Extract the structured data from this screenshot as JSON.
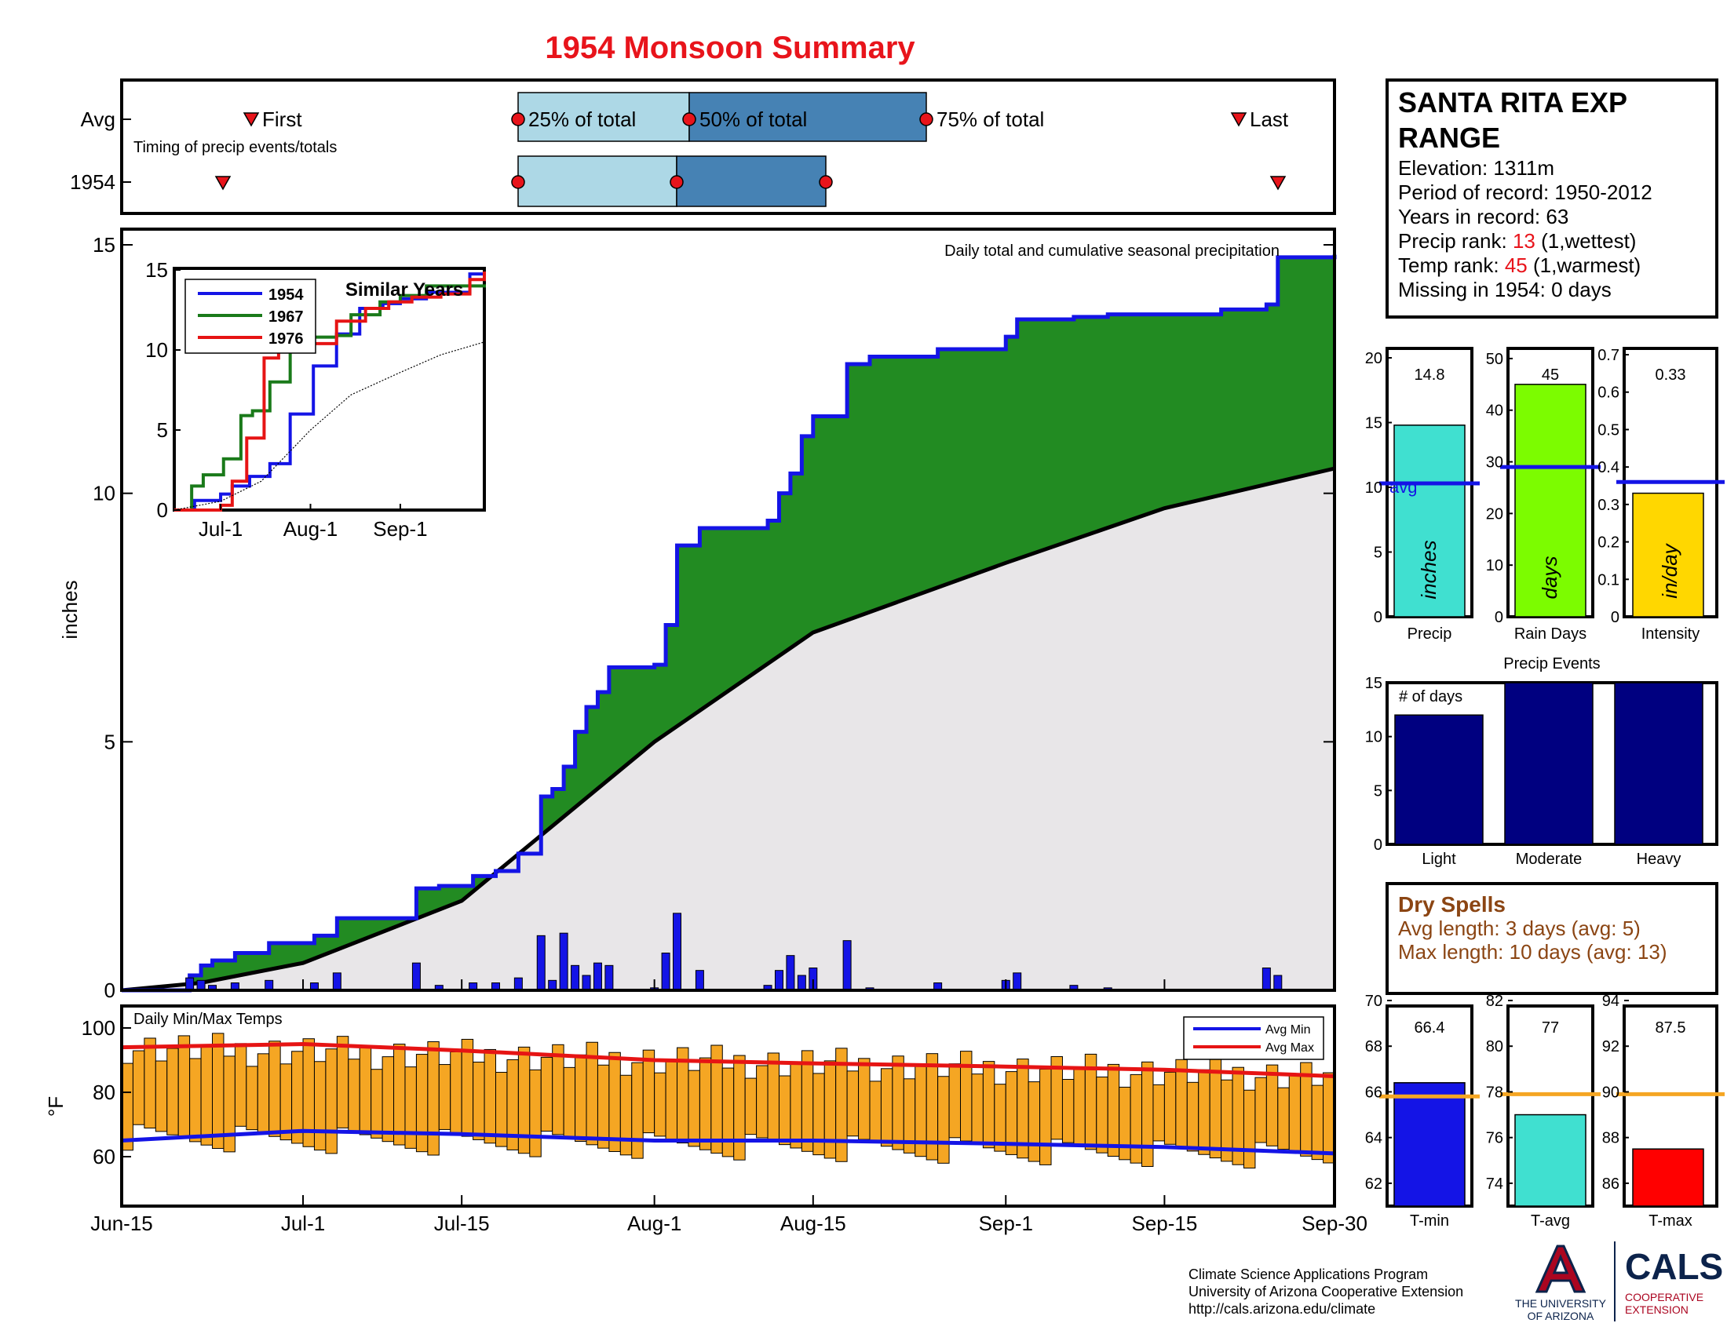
{
  "title": "1954 Monsoon Summary",
  "station": {
    "name_line1": "SANTA RITA EXP",
    "name_line2": "RANGE",
    "elevation": "Elevation: 1311m",
    "period": "Period of record: 1950-2012",
    "years": "Years in record: 63",
    "precip_rank_label": "Precip rank: ",
    "precip_rank_value": "13",
    "precip_rank_note": " (1,wettest)",
    "temp_rank_label": "Temp rank: ",
    "temp_rank_value": "45",
    "temp_rank_note": " (1,warmest)",
    "missing": "Missing in 1954: 0 days"
  },
  "timing": {
    "row_labels": [
      "Avg",
      "1954"
    ],
    "first_label": "First",
    "last_label": "Last",
    "pct25_label": "25% of total",
    "pct50_label": "50% of total",
    "pct75_label": "75% of total",
    "caption": "Timing of precip events/totals"
  },
  "x_ticks": [
    "Jun-15",
    "Jul-1",
    "Jul-15",
    "Aug-1",
    "Aug-15",
    "Sep-1",
    "Sep-15",
    "Sep-30"
  ],
  "main_chart": {
    "annotation": "Daily total and cumulative seasonal precipitation",
    "ylabel": "inches",
    "yticks": [
      "0",
      "5",
      "10",
      "15"
    ]
  },
  "inset": {
    "title": "Similar Years",
    "legend": [
      "1954",
      "1967",
      "1976"
    ],
    "yticks": [
      "0",
      "5",
      "10",
      "15"
    ],
    "xticks": [
      "Jul-1",
      "Aug-1",
      "Sep-1"
    ]
  },
  "temp_chart": {
    "title": "Daily Min/Max Temps",
    "ylabel": "°F",
    "yticks": [
      "60",
      "80",
      "100"
    ],
    "legend_min": "Avg Min",
    "legend_max": "Avg Max"
  },
  "stat_bars": {
    "precip": {
      "value_label": "14.8",
      "unit": "inches",
      "xlabel": "Precip",
      "avg_label": "avg",
      "yticks": [
        "0",
        "5",
        "10",
        "15",
        "20"
      ]
    },
    "raindays": {
      "value_label": "45",
      "unit": "days",
      "xlabel": "Rain Days",
      "yticks": [
        "0",
        "10",
        "20",
        "30",
        "40",
        "50"
      ]
    },
    "intensity": {
      "value_label": "0.33",
      "unit": "in/day",
      "xlabel": "Intensity",
      "yticks": [
        "0",
        "0.1",
        "0.2",
        "0.3",
        "0.4",
        "0.5",
        "0.6",
        "0.7"
      ]
    }
  },
  "events": {
    "title": "Precip Events",
    "ylabel_inside": "# of days",
    "categories": [
      "Light",
      "Moderate",
      "Heavy"
    ],
    "yticks": [
      "0",
      "5",
      "10",
      "15"
    ]
  },
  "dry_spells": {
    "title": "Dry Spells",
    "avg_line": "Avg length: 3 days (avg: 5)",
    "max_line": "Max length: 10 days (avg: 13)"
  },
  "temp_bars": {
    "tmin": {
      "value_label": "66.4",
      "xlabel": "T-min",
      "yticks": [
        "62",
        "64",
        "66",
        "68",
        "70"
      ]
    },
    "tavg": {
      "value_label": "77",
      "xlabel": "T-avg",
      "yticks": [
        "74",
        "76",
        "78",
        "80",
        "82"
      ]
    },
    "tmax": {
      "value_label": "87.5",
      "xlabel": "T-max",
      "yticks": [
        "86",
        "88",
        "90",
        "92",
        "94"
      ]
    }
  },
  "footer": {
    "line1": "Climate Science Applications Program",
    "line2": "University of Arizona Cooperative Extension",
    "line3": "http://cals.arizona.edu/climate",
    "ua_line1": "THE UNIVERSITY",
    "ua_line2": "OF ARIZONA",
    "cals_name": "CALS",
    "cals_line1": "COOPERATIVE",
    "cals_line2": "EXTENSION"
  },
  "colors": {
    "title_red": "#e8141b",
    "series_1954": "#1414e6",
    "series_1967": "#1a7a1a",
    "series_1976": "#e61414",
    "cumulative_fill": "#228b22",
    "avg_fill": "#e8e6e8",
    "temp_bar": "#f5a623",
    "dry_spell_brown": "#8b4513",
    "ua_blue": "#0c234b",
    "ua_red": "#ab0520"
  },
  "chart_data": [
    {
      "type": "area",
      "title": "Daily total and cumulative seasonal precipitation",
      "ylabel": "inches",
      "ylim": [
        0,
        15
      ],
      "x_range": [
        "Jun-15",
        "Sep-30"
      ],
      "series": [
        {
          "name": "1954",
          "kind": "cumulative",
          "x": [
            "Jun-15",
            "Jun-21",
            "Jun-22",
            "Jun-23",
            "Jun-25",
            "Jun-28",
            "Jul-2",
            "Jul-4",
            "Jul-11",
            "Jul-13",
            "Jul-16",
            "Jul-18",
            "Jul-20",
            "Jul-22",
            "Jul-23",
            "Jul-24",
            "Jul-25",
            "Jul-26",
            "Jul-27",
            "Jul-28",
            "Aug-1",
            "Aug-2",
            "Aug-3",
            "Aug-5",
            "Aug-11",
            "Aug-12",
            "Aug-13",
            "Aug-14",
            "Aug-15",
            "Aug-18",
            "Aug-20",
            "Aug-26",
            "Sep-1",
            "Sep-2",
            "Sep-7",
            "Sep-10",
            "Sep-20",
            "Sep-24",
            "Sep-25",
            "Sep-30"
          ],
          "y": [
            0,
            0.3,
            0.5,
            0.6,
            0.75,
            0.95,
            1.1,
            1.45,
            2.05,
            2.1,
            2.3,
            2.4,
            2.75,
            3.9,
            4.05,
            4.5,
            5.2,
            5.7,
            6.0,
            6.5,
            6.55,
            7.35,
            8.95,
            9.3,
            9.45,
            10.0,
            10.4,
            11.15,
            11.55,
            12.6,
            12.75,
            12.9,
            13.15,
            13.5,
            13.55,
            13.6,
            13.7,
            13.8,
            14.75,
            14.8
          ]
        },
        {
          "name": "Avg",
          "kind": "cumulative",
          "x": [
            "Jun-15",
            "Jun-22",
            "Jul-1",
            "Jul-15",
            "Aug-1",
            "Aug-15",
            "Sep-1",
            "Sep-15",
            "Sep-30"
          ],
          "y": [
            0,
            0.15,
            0.55,
            1.8,
            5.0,
            7.2,
            8.6,
            9.7,
            10.5
          ]
        },
        {
          "name": "1954 daily",
          "kind": "daily",
          "x": [
            "Jun-21",
            "Jun-22",
            "Jun-23",
            "Jun-25",
            "Jun-28",
            "Jul-2",
            "Jul-4",
            "Jul-11",
            "Jul-13",
            "Jul-16",
            "Jul-18",
            "Jul-20",
            "Jul-22",
            "Jul-23",
            "Jul-24",
            "Jul-25",
            "Jul-26",
            "Jul-27",
            "Jul-28",
            "Aug-1",
            "Aug-2",
            "Aug-3",
            "Aug-5",
            "Aug-11",
            "Aug-12",
            "Aug-13",
            "Aug-14",
            "Aug-15",
            "Aug-18",
            "Aug-20",
            "Aug-26",
            "Sep-1",
            "Sep-2",
            "Sep-7",
            "Sep-10",
            "Sep-24",
            "Sep-25"
          ],
          "y": [
            0.25,
            0.2,
            0.1,
            0.15,
            0.2,
            0.15,
            0.35,
            0.55,
            0.1,
            0.15,
            0.15,
            0.25,
            1.1,
            0.2,
            1.15,
            0.5,
            0.3,
            0.55,
            0.5,
            0.05,
            0.75,
            1.55,
            0.4,
            0.1,
            0.4,
            0.7,
            0.3,
            0.45,
            1.0,
            0.05,
            0.15,
            0.2,
            0.35,
            0.1,
            0.05,
            0.45,
            0.3
          ]
        }
      ]
    },
    {
      "type": "line",
      "title": "Similar Years",
      "ylim": [
        0,
        15
      ],
      "x_range": [
        "Jun-15",
        "Sep-30"
      ],
      "series": [
        {
          "name": "1954",
          "x": [
            "Jun-15",
            "Jun-22",
            "Jul-1",
            "Jul-5",
            "Jul-11",
            "Jul-18",
            "Jul-25",
            "Aug-2",
            "Aug-10",
            "Aug-18",
            "Aug-26",
            "Sep-1",
            "Sep-10",
            "Sep-25",
            "Sep-30"
          ],
          "y": [
            0,
            0.6,
            1.0,
            1.5,
            2.1,
            2.9,
            6.0,
            9.0,
            11.0,
            12.6,
            12.9,
            13.2,
            13.6,
            14.75,
            14.8
          ]
        },
        {
          "name": "1967",
          "x": [
            "Jun-15",
            "Jun-21",
            "Jun-25",
            "Jul-2",
            "Jul-8",
            "Jul-12",
            "Jul-18",
            "Jul-25",
            "Aug-1",
            "Aug-10",
            "Aug-15",
            "Aug-25",
            "Sep-1",
            "Sep-10",
            "Sep-20",
            "Sep-30"
          ],
          "y": [
            0,
            1.5,
            2.2,
            3.2,
            5.9,
            6.2,
            8.0,
            10.5,
            10.8,
            10.9,
            12.2,
            13.0,
            13.4,
            14.0,
            14.0,
            14.1
          ]
        },
        {
          "name": "1976",
          "x": [
            "Jun-15",
            "Jul-1",
            "Jul-5",
            "Jul-10",
            "Jul-16",
            "Jul-21",
            "Aug-1",
            "Aug-10",
            "Aug-20",
            "Aug-28",
            "Sep-5",
            "Sep-15",
            "Sep-25",
            "Sep-30"
          ],
          "y": [
            0,
            0.3,
            1.8,
            4.5,
            9.5,
            10.3,
            10.4,
            11.8,
            12.6,
            13.0,
            13.3,
            13.5,
            14.4,
            14.9
          ]
        },
        {
          "name": "Avg",
          "x": [
            "Jun-15",
            "Jul-1",
            "Jul-15",
            "Aug-1",
            "Aug-15",
            "Sep-1",
            "Sep-15",
            "Sep-30"
          ],
          "y": [
            0,
            0.55,
            1.8,
            5.0,
            7.2,
            8.6,
            9.7,
            10.5
          ]
        }
      ]
    },
    {
      "type": "bar",
      "title": "Daily Min/Max Temps",
      "ylabel": "°F",
      "ylim": [
        45,
        105
      ],
      "x_range": [
        "Jun-15",
        "Sep-30"
      ],
      "series": [
        {
          "name": "Avg Min",
          "kind": "line",
          "x": [
            "Jun-15",
            "Jul-1",
            "Jul-15",
            "Aug-1",
            "Aug-15",
            "Sep-1",
            "Sep-15",
            "Sep-30"
          ],
          "y": [
            65,
            68,
            67,
            65,
            65,
            64,
            63,
            61
          ]
        },
        {
          "name": "Avg Max",
          "kind": "line",
          "x": [
            "Jun-15",
            "Jul-1",
            "Jul-15",
            "Aug-1",
            "Aug-15",
            "Sep-1",
            "Sep-15",
            "Sep-30"
          ],
          "y": [
            94,
            95,
            93,
            90,
            89,
            88,
            87,
            85
          ]
        }
      ]
    },
    {
      "type": "bar",
      "title": "Precip",
      "categories": [
        "Precip"
      ],
      "values": [
        14.8
      ],
      "avg": 10.3,
      "ylim": [
        0,
        20
      ]
    },
    {
      "type": "bar",
      "title": "Rain Days",
      "categories": [
        "Rain Days"
      ],
      "values": [
        45
      ],
      "avg": 29,
      "ylim": [
        0,
        55
      ]
    },
    {
      "type": "bar",
      "title": "Intensity",
      "categories": [
        "Intensity"
      ],
      "values": [
        0.33
      ],
      "avg": 0.36,
      "ylim": [
        0,
        0.7
      ]
    },
    {
      "type": "bar",
      "title": "Precip Events",
      "categories": [
        "Light",
        "Moderate",
        "Heavy"
      ],
      "values": [
        12,
        15,
        15
      ],
      "ylim": [
        0,
        15
      ]
    },
    {
      "type": "bar",
      "title": "T-min",
      "categories": [
        "T-min"
      ],
      "values": [
        66.4
      ],
      "avg": 65.8,
      "ylim": [
        61,
        70
      ]
    },
    {
      "type": "bar",
      "title": "T-avg",
      "categories": [
        "T-avg"
      ],
      "values": [
        77
      ],
      "avg": 77.9,
      "ylim": [
        73,
        82
      ]
    },
    {
      "type": "bar",
      "title": "T-max",
      "categories": [
        "T-max"
      ],
      "values": [
        87.5
      ],
      "avg": 89.9,
      "ylim": [
        85,
        94
      ]
    }
  ]
}
